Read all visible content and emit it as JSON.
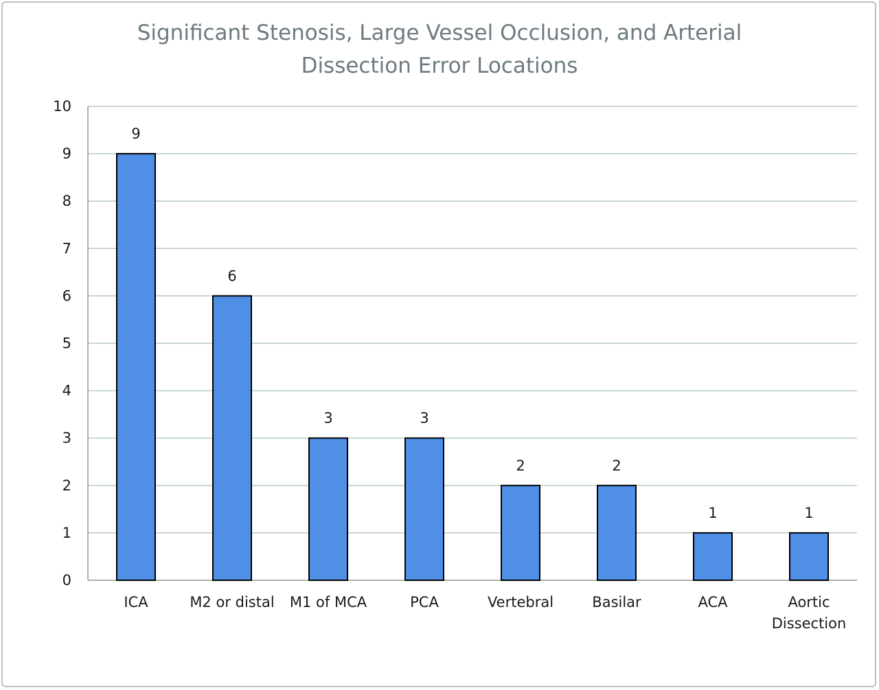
{
  "chart_data": {
    "type": "bar",
    "title": "Significant Stenosis, Large Vessel Occlusion, and Arterial Dissection Error Locations",
    "title_lines": [
      "Significant Stenosis, Large Vessel Occlusion, and Arterial",
      "Dissection Error Locations"
    ],
    "xlabel": "",
    "ylabel": "",
    "categories": [
      "ICA",
      "M2 or distal",
      "M1 of MCA",
      "PCA",
      "Vertebral",
      "Basilar",
      "ACA",
      "Aortic Dissection"
    ],
    "category_lines": [
      [
        "ICA"
      ],
      [
        "M2 or distal"
      ],
      [
        "M1 of MCA"
      ],
      [
        "PCA"
      ],
      [
        "Vertebral"
      ],
      [
        "Basilar"
      ],
      [
        "ACA"
      ],
      [
        "Aortic",
        "Dissection"
      ]
    ],
    "values": [
      9,
      6,
      3,
      3,
      2,
      2,
      1,
      1
    ],
    "data_labels": [
      "9",
      "6",
      "3",
      "3",
      "2",
      "2",
      "1",
      "1"
    ],
    "ylim": [
      0,
      10
    ],
    "yticks": [
      "0",
      "1",
      "2",
      "3",
      "4",
      "5",
      "6",
      "7",
      "8",
      "9",
      "10"
    ],
    "grid": true,
    "legend": "none",
    "colors": {
      "bar_fill": "#4f8fe6",
      "bar_stroke": "#000000",
      "grid": "#b9c9c9",
      "axis": "#8c9a9a",
      "title": "#6d7a80"
    }
  }
}
